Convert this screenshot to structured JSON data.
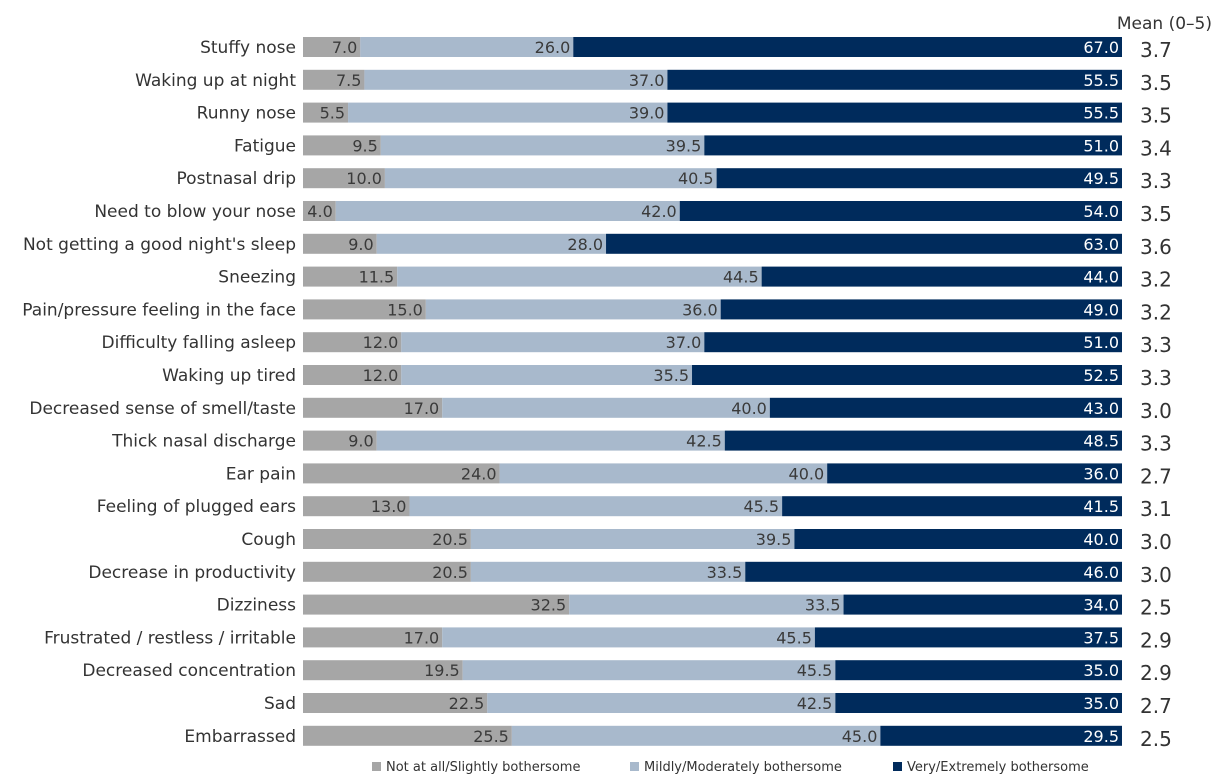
{
  "chart_data": {
    "type": "bar",
    "stacked": true,
    "orientation": "horizontal",
    "percent_scale": [
      0,
      100
    ],
    "mean_header": "Mean (0–5)",
    "categories": [
      "Stuffy nose",
      "Waking up at night",
      "Runny nose",
      "Fatigue",
      "Postnasal drip",
      "Need to blow your nose",
      "Not getting a good night's sleep",
      "Sneezing",
      "Pain/pressure feeling in the face",
      "Difficulty falling asleep",
      "Waking up tired",
      "Decreased sense of smell/taste",
      "Thick nasal discharge",
      "Ear pain",
      "Feeling of plugged ears",
      "Cough",
      "Decrease in productivity",
      "Dizziness",
      "Frustrated / restless / irritable",
      "Decreased concentration",
      "Sad",
      "Embarrassed"
    ],
    "series": [
      {
        "name": "Not at all/Slightly bothersome",
        "color": "#a6a6a6",
        "label_color": "#3a3a3a",
        "values": [
          7.0,
          7.5,
          5.5,
          9.5,
          10.0,
          4.0,
          9.0,
          11.5,
          15.0,
          12.0,
          12.0,
          17.0,
          9.0,
          24.0,
          13.0,
          20.5,
          20.5,
          32.5,
          17.0,
          19.5,
          22.5,
          25.5
        ]
      },
      {
        "name": "Mildly/Moderately  bothersome",
        "color": "#a8b9cc",
        "label_color": "#3a3a3a",
        "values": [
          26.0,
          37.0,
          39.0,
          39.5,
          40.5,
          42.0,
          28.0,
          44.5,
          36.0,
          37.0,
          35.5,
          40.0,
          42.5,
          40.0,
          45.5,
          39.5,
          33.5,
          33.5,
          45.5,
          45.5,
          42.5,
          45.0
        ]
      },
      {
        "name": "Very/Extremely bothersome",
        "color": "#002b5c",
        "label_color": "#ffffff",
        "values": [
          67.0,
          55.5,
          55.5,
          51.0,
          49.5,
          54.0,
          63.0,
          44.0,
          49.0,
          51.0,
          52.5,
          43.0,
          48.5,
          36.0,
          41.5,
          40.0,
          46.0,
          34.0,
          37.5,
          35.0,
          35.0,
          29.5
        ]
      }
    ],
    "means": [
      3.7,
      3.5,
      3.5,
      3.4,
      3.3,
      3.5,
      3.6,
      3.2,
      3.2,
      3.3,
      3.3,
      3.0,
      3.3,
      2.7,
      3.1,
      3.0,
      3.0,
      2.5,
      2.9,
      2.9,
      2.7,
      2.5
    ],
    "legend_position": "bottom",
    "grid": false
  }
}
